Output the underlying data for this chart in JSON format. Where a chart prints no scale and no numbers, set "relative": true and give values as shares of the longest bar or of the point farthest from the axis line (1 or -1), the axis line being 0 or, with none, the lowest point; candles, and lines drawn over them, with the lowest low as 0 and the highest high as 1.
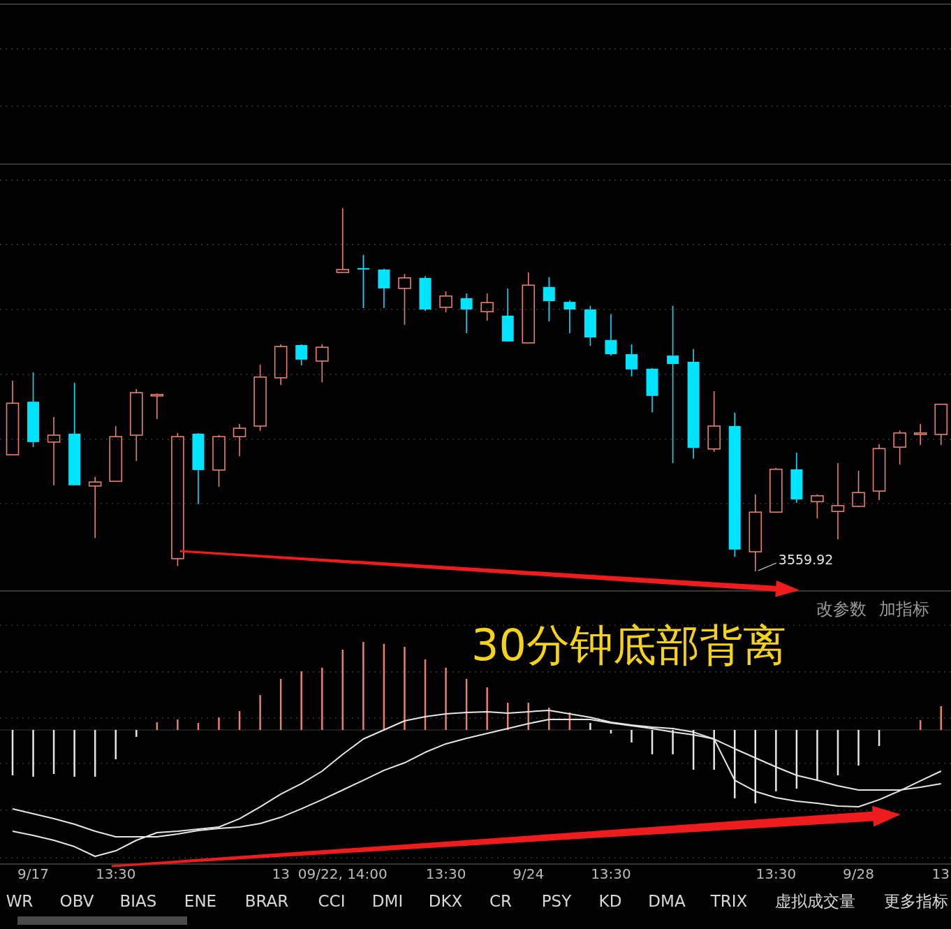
{
  "chart_data": [
    {
      "type": "candlestick",
      "relative": true,
      "grid": true,
      "categories": [
        null,
        null,
        null,
        null,
        null,
        null,
        null,
        null,
        null,
        null,
        null,
        null,
        null,
        null,
        null,
        null,
        null,
        null,
        null,
        null,
        null,
        null,
        null,
        null,
        null,
        null,
        null,
        null,
        null,
        null,
        null,
        null,
        null,
        null,
        null,
        null,
        null,
        null,
        null,
        null,
        null,
        null,
        null,
        null,
        null,
        null
      ],
      "ohlc": [
        [
          0.321,
          0.525,
          0.321,
          0.463
        ],
        [
          0.467,
          0.548,
          0.342,
          0.356
        ],
        [
          0.356,
          0.425,
          0.237,
          0.375
        ],
        [
          0.379,
          0.519,
          0.237,
          0.237
        ],
        [
          0.235,
          0.26,
          0.092,
          0.246
        ],
        [
          0.248,
          0.4,
          0.248,
          0.371
        ],
        [
          0.375,
          0.502,
          0.304,
          0.492
        ],
        [
          0.483,
          0.49,
          0.419,
          0.487
        ],
        [
          0.035,
          0.381,
          0.015,
          0.371
        ],
        [
          0.379,
          0.381,
          0.185,
          0.279
        ],
        [
          0.279,
          0.375,
          0.233,
          0.371
        ],
        [
          0.371,
          0.406,
          0.317,
          0.394
        ],
        [
          0.4,
          0.569,
          0.387,
          0.535
        ],
        [
          0.533,
          0.625,
          0.513,
          0.619
        ],
        [
          0.623,
          0.625,
          0.567,
          0.583
        ],
        [
          0.579,
          0.625,
          0.521,
          0.617
        ],
        [
          0.823,
          1.0,
          0.823,
          0.831
        ],
        [
          0.835,
          0.871,
          0.725,
          0.831
        ],
        [
          0.831,
          0.833,
          0.725,
          0.779
        ],
        [
          0.779,
          0.819,
          0.679,
          0.808
        ],
        [
          0.808,
          0.813,
          0.717,
          0.721
        ],
        [
          0.727,
          0.771,
          0.713,
          0.758
        ],
        [
          0.752,
          0.765,
          0.656,
          0.721
        ],
        [
          0.715,
          0.765,
          0.69,
          0.74
        ],
        [
          0.704,
          0.779,
          0.633,
          0.633
        ],
        [
          0.629,
          0.823,
          0.629,
          0.788
        ],
        [
          0.783,
          0.81,
          0.688,
          0.744
        ],
        [
          0.742,
          0.746,
          0.656,
          0.721
        ],
        [
          0.721,
          0.731,
          0.621,
          0.644
        ],
        [
          0.637,
          0.708,
          0.594,
          0.598
        ],
        [
          0.598,
          0.625,
          0.537,
          0.556
        ],
        [
          0.558,
          0.56,
          0.438,
          0.483
        ],
        [
          0.594,
          0.731,
          0.298,
          0.571
        ],
        [
          0.577,
          0.612,
          0.31,
          0.34
        ],
        [
          0.337,
          0.496,
          0.329,
          0.4
        ],
        [
          0.4,
          0.437,
          0.04,
          0.06
        ],
        [
          0.054,
          0.212,
          0.0,
          0.163
        ],
        [
          0.163,
          0.285,
          0.163,
          0.281
        ],
        [
          0.281,
          0.327,
          0.188,
          0.198
        ],
        [
          0.192,
          0.212,
          0.146,
          0.208
        ],
        [
          0.165,
          0.298,
          0.088,
          0.181
        ],
        [
          0.179,
          0.277,
          0.177,
          0.217
        ],
        [
          0.221,
          0.35,
          0.196,
          0.338
        ],
        [
          0.342,
          0.388,
          0.294,
          0.381
        ],
        [
          0.377,
          0.406,
          0.348,
          0.381
        ],
        [
          0.377,
          0.462,
          0.348,
          0.46
        ]
      ],
      "colors": [
        "#e8806c",
        "#00e4ff",
        "#e8806c",
        "#00e4ff",
        "#e8806c",
        "#e8806c",
        "#e8806c",
        "#e8806c",
        "#e8806c",
        "#00e4ff",
        "#e8806c",
        "#e8806c",
        "#e8806c",
        "#e8806c",
        "#00e4ff",
        "#e8806c",
        "#e8806c",
        "#00e4ff",
        "#00e4ff",
        "#e8806c",
        "#00e4ff",
        "#e8806c",
        "#00e4ff",
        "#e8806c",
        "#00e4ff",
        "#e8806c",
        "#00e4ff",
        "#00e4ff",
        "#00e4ff",
        "#00e4ff",
        "#00e4ff",
        "#00e4ff",
        "#00e4ff",
        "#00e4ff",
        "#e8806c",
        "#00e4ff",
        "#e8806c",
        "#e8806c",
        "#00e4ff",
        "#e8806c",
        "#e8806c",
        "#e8806c",
        "#e8806c",
        "#e8806c",
        "#e8806c",
        "#e8806c"
      ],
      "annotations": [
        "3559.92",
        "改参数",
        "加指标"
      ]
    },
    {
      "type": "bar",
      "relative": true,
      "grid": true,
      "categories": [
        null,
        "9/17",
        null,
        null,
        null,
        "13:30",
        null,
        null,
        null,
        null,
        null,
        null,
        null,
        "13",
        null,
        null,
        "09/22, 14:00",
        null,
        null,
        null,
        null,
        "13:30",
        null,
        null,
        null,
        "9/24",
        null,
        null,
        null,
        "13:30",
        null,
        null,
        null,
        null,
        null,
        null,
        null,
        "13:30",
        null,
        null,
        null,
        "9/28",
        null,
        null,
        null,
        "13"
      ],
      "series": [
        {
          "type": "bar",
          "values": [
            -0.359,
            -0.37,
            -0.348,
            -0.37,
            -0.37,
            -0.232,
            -0.055,
            0.061,
            0.083,
            0.055,
            0.099,
            0.149,
            0.276,
            0.403,
            0.464,
            0.492,
            0.635,
            0.696,
            0.68,
            0.657,
            0.558,
            0.492,
            0.403,
            0.337,
            0.215,
            0.215,
            0.177,
            0.138,
            0.055,
            -0.028,
            -0.099,
            -0.193,
            -0.193,
            -0.315,
            -0.315,
            -0.541,
            -0.58,
            -0.486,
            -0.464,
            -0.403,
            -0.359,
            -0.282,
            -0.127,
            null,
            0.077,
            0.188
          ],
          "colors": [
            "#e6e6e6",
            "#e6e6e6",
            "#e6e6e6",
            "#e6e6e6",
            "#e6e6e6",
            "#e6e6e6",
            "#e6e6e6",
            "#e8806c",
            "#e8806c",
            "#e8806c",
            "#e8806c",
            "#e8806c",
            "#e8806c",
            "#e8806c",
            "#e8806c",
            "#e8806c",
            "#e8806c",
            "#e8806c",
            "#e8806c",
            "#e8806c",
            "#e8806c",
            "#e8806c",
            "#e8806c",
            "#e8806c",
            "#e8806c",
            "#e8806c",
            "#e8806c",
            "#e8806c",
            "#e6e6e6",
            "#e6e6e6",
            "#e6e6e6",
            "#e6e6e6",
            "#e6e6e6",
            "#e6e6e6",
            "#e6e6e6",
            "#e6e6e6",
            "#e6e6e6",
            "#e6e6e6",
            "#e6e6e6",
            "#e6e6e6",
            "#e6e6e6",
            "#e6e6e6",
            "#e6e6e6",
            null,
            "#e8806c",
            "#e8806c"
          ]
        },
        {
          "type": "line",
          "color": "#e6e6e6",
          "values": [
            -0.801,
            -0.834,
            -0.873,
            -0.923,
            -1.0,
            -0.956,
            -0.873,
            -0.812,
            -0.801,
            -0.785,
            -0.768,
            -0.702,
            -0.608,
            -0.508,
            -0.425,
            -0.326,
            -0.193,
            -0.072,
            0,
            0.072,
            0.105,
            0.127,
            0.138,
            0.144,
            0.133,
            0.144,
            0.155,
            0.127,
            0.099,
            0.061,
            0.039,
            0.022,
            0.011,
            -0.017,
            -0.072,
            -0.398,
            -0.486,
            -0.536,
            -0.564,
            -0.58,
            -0.602,
            -0.608,
            -0.552,
            -0.481,
            -0.403,
            -0.326
          ]
        },
        {
          "type": "line",
          "color": "#e6e6e6",
          "values": [
            -0.624,
            -0.663,
            -0.702,
            -0.746,
            -0.801,
            -0.845,
            -0.845,
            -0.845,
            -0.823,
            -0.796,
            -0.779,
            -0.768,
            -0.74,
            -0.691,
            -0.624,
            -0.552,
            -0.475,
            -0.398,
            -0.32,
            -0.26,
            -0.177,
            -0.11,
            -0.066,
            -0.028,
            0.011,
            0.05,
            0.083,
            0.083,
            0.083,
            0.055,
            0.033,
            0.011,
            -0.017,
            -0.039,
            -0.072,
            -0.149,
            -0.221,
            -0.293,
            -0.359,
            -0.398,
            -0.442,
            -0.475,
            -0.475,
            -0.475,
            -0.453,
            -0.425
          ]
        }
      ],
      "annotations": [
        "30分钟底部背离",
        "WR",
        "OBV",
        "BIAS",
        "ENE",
        "BRAR",
        "CCI",
        "DMI",
        "DKX",
        "CR",
        "PSY",
        "KD",
        "DMA",
        "TRIX",
        "虚拟成交量",
        "更多指标"
      ]
    }
  ]
}
